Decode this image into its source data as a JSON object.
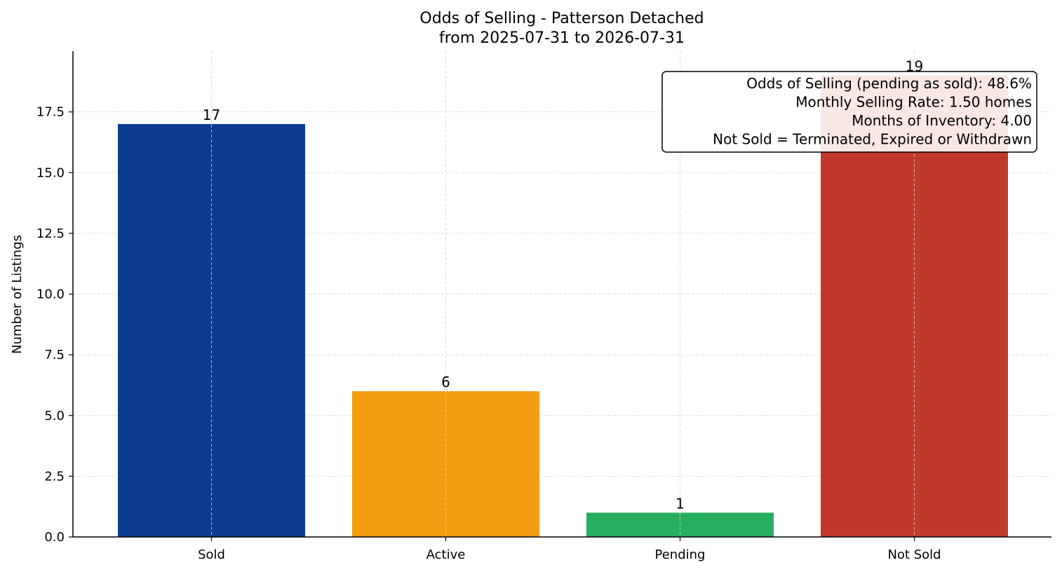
{
  "chart_data": {
    "type": "bar",
    "title_lines": [
      "Odds of Selling - Patterson Detached",
      "from 2025-07-31 to 2026-07-31"
    ],
    "xlabel": "",
    "ylabel": "Number of Listings",
    "categories": [
      "Sold",
      "Active",
      "Pending",
      "Not Sold"
    ],
    "values": [
      17,
      6,
      1,
      19
    ],
    "data_labels": [
      "17",
      "6",
      "1",
      "19"
    ],
    "colors": [
      "#0b3b8f",
      "#f39c12",
      "#27ae60",
      "#c0392b"
    ],
    "ylim": [
      0,
      20
    ],
    "yticks": [
      0.0,
      2.5,
      5.0,
      7.5,
      10.0,
      12.5,
      15.0,
      17.5
    ],
    "ytick_labels": [
      "0.0",
      "2.5",
      "5.0",
      "7.5",
      "10.0",
      "12.5",
      "15.0",
      "17.5"
    ],
    "grid": true,
    "annotation": {
      "placement": "top-right",
      "lines": [
        "Odds of Selling (pending as sold): 48.6%",
        "Monthly Selling Rate: 1.50 homes",
        "Months of Inventory: 4.00",
        "Not Sold = Terminated, Expired or Withdrawn"
      ]
    }
  }
}
